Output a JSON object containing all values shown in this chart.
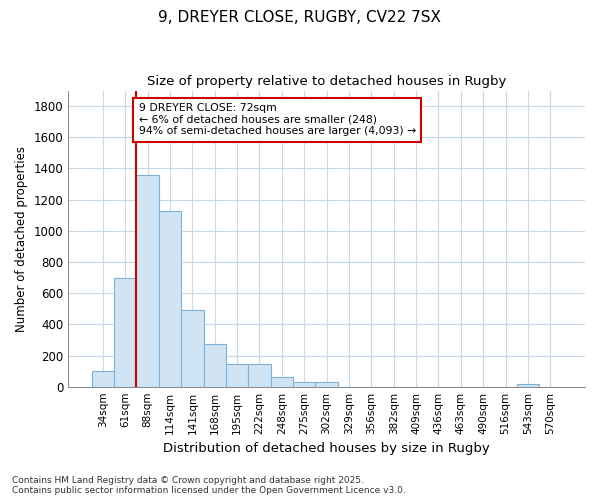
{
  "title_line1": "9, DREYER CLOSE, RUGBY, CV22 7SX",
  "title_line2": "Size of property relative to detached houses in Rugby",
  "xlabel": "Distribution of detached houses by size in Rugby",
  "ylabel": "Number of detached properties",
  "categories": [
    "34sqm",
    "61sqm",
    "88sqm",
    "114sqm",
    "141sqm",
    "168sqm",
    "195sqm",
    "222sqm",
    "248sqm",
    "275sqm",
    "302sqm",
    "329sqm",
    "356sqm",
    "382sqm",
    "409sqm",
    "436sqm",
    "463sqm",
    "490sqm",
    "516sqm",
    "543sqm",
    "570sqm"
  ],
  "values": [
    100,
    700,
    1360,
    1130,
    490,
    275,
    145,
    145,
    65,
    30,
    30,
    0,
    0,
    0,
    0,
    0,
    0,
    0,
    0,
    15,
    0
  ],
  "bar_color": "#d0e4f4",
  "bar_edge_color": "#7fb0d8",
  "grid_color": "#c8d8e8",
  "vline_color": "#cc0000",
  "annotation_text": "9 DREYER CLOSE: 72sqm\n← 6% of detached houses are smaller (248)\n94% of semi-detached houses are larger (4,093) →",
  "annotation_box_color": "#ffffff",
  "annotation_box_edge": "#cc0000",
  "ylim": [
    0,
    1900
  ],
  "yticks": [
    0,
    200,
    400,
    600,
    800,
    1000,
    1200,
    1400,
    1600,
    1800
  ],
  "footer_text": "Contains HM Land Registry data © Crown copyright and database right 2025.\nContains public sector information licensed under the Open Government Licence v3.0.",
  "background_color": "#ffffff",
  "plot_background": "#ffffff"
}
